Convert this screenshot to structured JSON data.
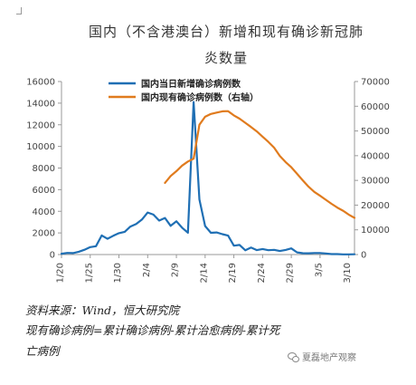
{
  "header": {
    "title_line1": "国内（不含港澳台）新增和现有确诊新冠肺",
    "title_line2": "炎数量"
  },
  "chart_data": {
    "type": "line",
    "title": "国内（不含港澳台）新增和现有确诊新冠肺炎数量",
    "y_left": {
      "min": 0,
      "max": 16000,
      "ticks": [
        0,
        2000,
        4000,
        6000,
        8000,
        10000,
        12000,
        14000,
        16000
      ]
    },
    "y_right": {
      "min": 0,
      "max": 70000,
      "ticks": [
        0,
        10000,
        20000,
        30000,
        40000,
        50000,
        60000,
        70000
      ]
    },
    "x_start": "1/20",
    "x_end": "3/11",
    "x_ticks": [
      "1/20",
      "1/25",
      "1/30",
      "2/4",
      "2/9",
      "2/14",
      "2/19",
      "2/24",
      "2/29",
      "3/5",
      "3/10"
    ],
    "legend_position": "top-center",
    "grid": false,
    "series": [
      {
        "name": "国内当日新增确诊病例数",
        "axis": "left",
        "color": "#1f6fb4",
        "x": [
          "1/20",
          "1/21",
          "1/22",
          "1/23",
          "1/24",
          "1/25",
          "1/26",
          "1/27",
          "1/28",
          "1/29",
          "1/30",
          "1/31",
          "2/1",
          "2/2",
          "2/3",
          "2/4",
          "2/5",
          "2/6",
          "2/7",
          "2/8",
          "2/9",
          "2/10",
          "2/11",
          "2/12",
          "2/13",
          "2/14",
          "2/15",
          "2/16",
          "2/17",
          "2/18",
          "2/19",
          "2/20",
          "2/21",
          "2/22",
          "2/23",
          "2/24",
          "2/25",
          "2/26",
          "2/27",
          "2/28",
          "2/29",
          "3/1",
          "3/2",
          "3/3",
          "3/4",
          "3/5",
          "3/6",
          "3/7",
          "3/8",
          "3/9",
          "3/10",
          "3/11"
        ],
        "values": [
          77,
          149,
          131,
          259,
          444,
          688,
          769,
          1771,
          1459,
          1737,
          1981,
          2099,
          2589,
          2825,
          3235,
          3884,
          3694,
          3143,
          3385,
          2652,
          3073,
          2478,
          2015,
          14108,
          5090,
          2641,
          2008,
          2048,
          1886,
          1749,
          820,
          889,
          397,
          648,
          409,
          508,
          406,
          433,
          327,
          427,
          573,
          202,
          125,
          119,
          139,
          143,
          99,
          44,
          40,
          19,
          17,
          24
        ]
      },
      {
        "name": "国内现有确诊病例数（右轴）",
        "axis": "right",
        "color": "#e07b1e",
        "x": [
          "2/7",
          "2/8",
          "2/9",
          "2/10",
          "2/11",
          "2/12",
          "2/13",
          "2/14",
          "2/15",
          "2/16",
          "2/17",
          "2/18",
          "2/19",
          "2/20",
          "2/21",
          "2/22",
          "2/23",
          "2/24",
          "2/25",
          "2/26",
          "2/27",
          "2/28",
          "2/29",
          "3/1",
          "3/2",
          "3/3",
          "3/4",
          "3/5",
          "3/6",
          "3/7",
          "3/8",
          "3/9",
          "3/10",
          "3/11"
        ],
        "values": [
          28985,
          31774,
          33738,
          35982,
          37626,
          38800,
          52526,
          55748,
          56873,
          57416,
          57934,
          58016,
          56301,
          54965,
          53284,
          51606,
          49824,
          47672,
          45604,
          43258,
          39919,
          37414,
          35329,
          32652,
          30004,
          27433,
          25352,
          23784,
          22177,
          20533,
          19016,
          17721,
          16145,
          14831
        ]
      }
    ]
  },
  "notes": {
    "source": "资料来源：Wind，恒大研究院",
    "formula_line1": "现有确诊病例=累计确诊病例-累计治愈病例-累计死",
    "formula_line2": "亡病例"
  },
  "brand": {
    "label": "夏磊地产观察",
    "icon": "wechat-icon"
  }
}
